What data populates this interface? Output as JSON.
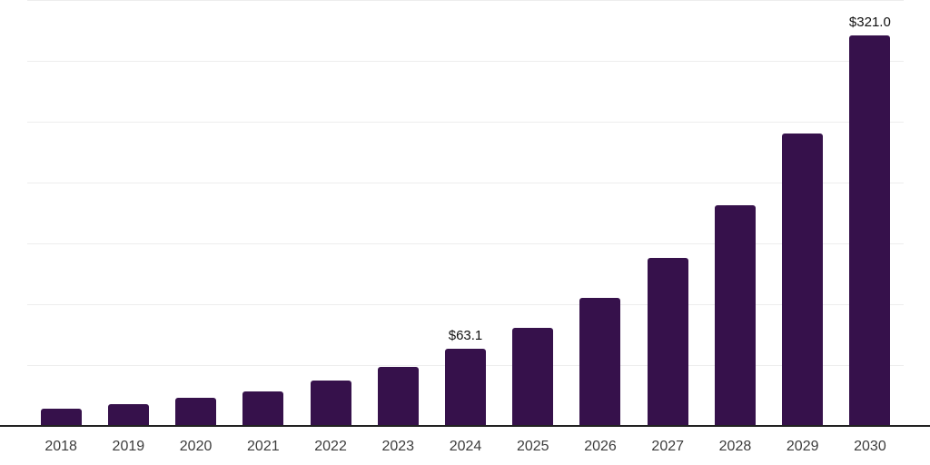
{
  "chart_data": {
    "type": "bar",
    "title": "",
    "xlabel": "",
    "ylabel": "",
    "categories": [
      "2018",
      "2019",
      "2020",
      "2021",
      "2022",
      "2023",
      "2024",
      "2025",
      "2026",
      "2027",
      "2028",
      "2029",
      "2030"
    ],
    "values": [
      14.2,
      17.9,
      22.9,
      28.6,
      37.3,
      48.5,
      63.1,
      80.8,
      105.4,
      138.1,
      181.6,
      240.3,
      321.0
    ],
    "value_labels": [
      null,
      null,
      null,
      null,
      null,
      null,
      "$63.1",
      null,
      null,
      null,
      null,
      null,
      "$321.0"
    ],
    "ylim": [
      0,
      350
    ],
    "grid_step": 50,
    "grid": "horizontal",
    "legend_position": "none",
    "colors": {
      "bar": "#36114b",
      "gridline": "#ededed",
      "axis_line": "#222222",
      "tick_label": "#3c3c3c",
      "value_label": "#101010",
      "background": "#ffffff"
    }
  }
}
